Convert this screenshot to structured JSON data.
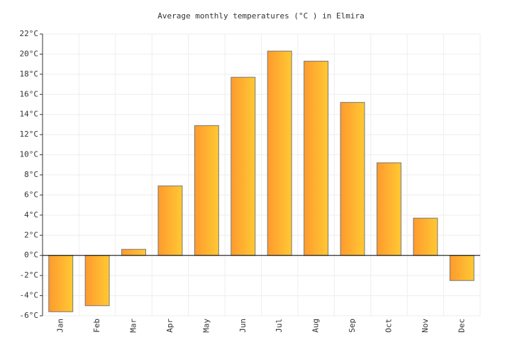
{
  "chart_data": {
    "type": "bar",
    "title": "Average monthly temperatures (°C ) in Elmira",
    "categories": [
      "Jan",
      "Feb",
      "Mar",
      "Apr",
      "May",
      "Jun",
      "Jul",
      "Aug",
      "Sep",
      "Oct",
      "Nov",
      "Dec"
    ],
    "values": [
      -5.6,
      -5.0,
      0.6,
      6.9,
      12.9,
      17.7,
      20.3,
      19.3,
      15.2,
      9.2,
      3.7,
      -2.5
    ],
    "color": [
      "#ff9a2e",
      "#ffc933"
    ],
    "ylim": [
      -6,
      22
    ],
    "yticks": [
      {
        "value": -6,
        "label": "-6°C"
      },
      {
        "value": -4,
        "label": "-4°C"
      },
      {
        "value": -2,
        "label": "-2°C"
      },
      {
        "value": 0,
        "label": "0°C"
      },
      {
        "value": 2,
        "label": "2°C"
      },
      {
        "value": 4,
        "label": "4°C"
      },
      {
        "value": 6,
        "label": "6°C"
      },
      {
        "value": 8,
        "label": "8°C"
      },
      {
        "value": 10,
        "label": "10°C"
      },
      {
        "value": 12,
        "label": "12°C"
      },
      {
        "value": 14,
        "label": "14°C"
      },
      {
        "value": 16,
        "label": "16°C"
      },
      {
        "value": 18,
        "label": "18°C"
      },
      {
        "value": 20,
        "label": "20°C"
      },
      {
        "value": 22,
        "label": "22°C"
      }
    ],
    "grid": true
  }
}
